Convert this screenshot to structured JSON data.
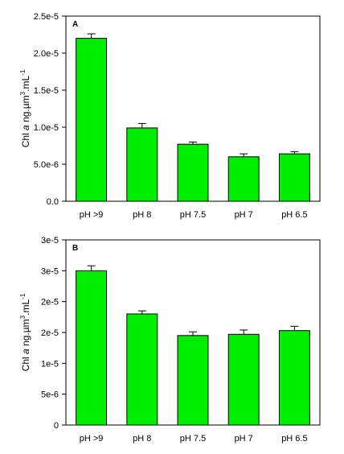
{
  "chart_data": [
    {
      "type": "bar",
      "panel_label": "A",
      "categories": [
        "pH >9",
        "pH 8",
        "pH 7.5",
        "pH 7",
        "pH 6.5"
      ],
      "values": [
        2.2e-05,
        9.9e-06,
        7.7e-06,
        6e-06,
        6.4e-06
      ],
      "errors": [
        6e-07,
        6e-07,
        3e-07,
        4e-07,
        3e-07
      ],
      "ylim": [
        0,
        2.5e-05
      ],
      "yticks": [
        "0.0",
        "5.0e-6",
        "1.0e-5",
        "1.5e-5",
        "2.0e-5",
        "2.5e-5"
      ],
      "ylabel": {
        "pre": "Chl ",
        "italic": "a",
        "mid": " ng.µm",
        "sup1": "3",
        "mid2": ".mL",
        "sup2": "-1"
      },
      "bar_color": "#00ee00",
      "grid": false
    },
    {
      "type": "bar",
      "panel_label": "B",
      "categories": [
        "pH >9",
        "pH 8",
        "pH 7.5",
        "pH 7",
        "pH 6.5"
      ],
      "values": [
        2.5e-05,
        1.8e-05,
        1.45e-05,
        1.47e-05,
        1.53e-05
      ],
      "errors": [
        8e-07,
        5e-07,
        6e-07,
        7e-07,
        7e-07
      ],
      "ylim": [
        0,
        3e-05
      ],
      "yticks": [
        "0",
        "5e-6",
        "1e-5",
        "2e-5",
        "2e-5",
        "3e-5",
        "3e-5"
      ],
      "ylabel": {
        "pre": "Chl ",
        "italic": "a",
        "mid": " ng.µm",
        "sup1": "3",
        "mid2": ".mL",
        "sup2": "-1"
      },
      "bar_color": "#00ee00",
      "grid": false
    }
  ]
}
